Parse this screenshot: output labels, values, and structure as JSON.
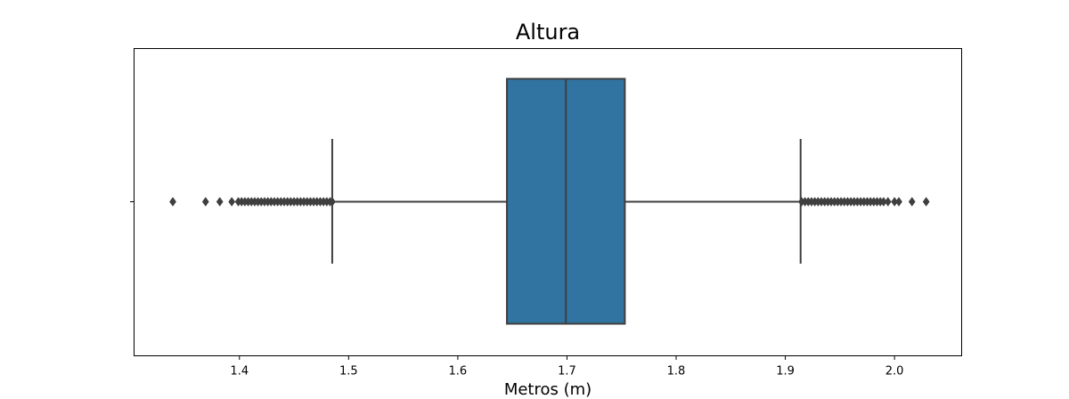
{
  "chart_data": {
    "type": "box",
    "title": "Altura",
    "xlabel": "Metros (m)",
    "ylabel": "",
    "xlim": [
      1.3035,
      2.0615
    ],
    "xticks": [
      1.4,
      1.5,
      1.6,
      1.7,
      1.8,
      1.9,
      2.0
    ],
    "xtick_labels": [
      "1.4",
      "1.5",
      "1.6",
      "1.7",
      "1.8",
      "1.9",
      "2.0"
    ],
    "box": {
      "whisker_low": 1.485,
      "q1": 1.645,
      "median": 1.699,
      "q3": 1.753,
      "whisker_high": 1.914
    },
    "outliers_low": [
      1.339,
      1.369,
      1.382,
      1.393,
      1.399,
      1.402,
      1.405,
      1.408,
      1.411,
      1.414,
      1.417,
      1.42,
      1.423,
      1.426,
      1.429,
      1.432,
      1.435,
      1.438,
      1.441,
      1.444,
      1.447,
      1.45,
      1.453,
      1.456,
      1.459,
      1.462,
      1.465,
      1.468,
      1.471,
      1.474,
      1.477,
      1.48,
      1.483,
      1.485
    ],
    "outliers_high": [
      1.915,
      1.918,
      1.921,
      1.924,
      1.927,
      1.93,
      1.933,
      1.936,
      1.939,
      1.942,
      1.945,
      1.948,
      1.951,
      1.954,
      1.957,
      1.96,
      1.963,
      1.966,
      1.969,
      1.972,
      1.975,
      1.978,
      1.981,
      1.984,
      1.987,
      1.99,
      1.994,
      2.0,
      2.004,
      2.016,
      2.029
    ],
    "colors": {
      "box_fill": "#3274a1",
      "line": "#3f3f3f",
      "outlier": "#3f3f3f",
      "axes": "#000000"
    },
    "grid": false
  }
}
